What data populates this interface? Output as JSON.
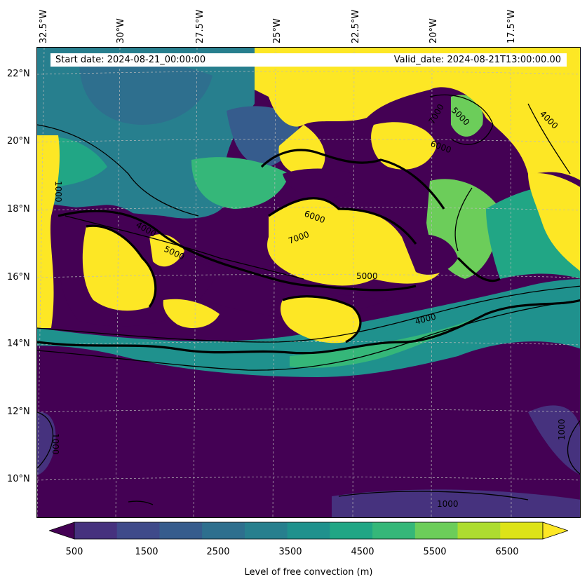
{
  "info": {
    "start_date": "Start date: 2024-08-21_00:00:00",
    "valid_date": "Valid_date: 2024-08-21T13:00:00.00"
  },
  "axes": {
    "lon_labels": [
      "32.5°W",
      "30°W",
      "27.5°W",
      "25°W",
      "22.5°W",
      "20°W",
      "17.5°W"
    ],
    "lat_labels": [
      "22°N",
      "20°N",
      "18°N",
      "16°N",
      "14°N",
      "12°N",
      "10°N"
    ]
  },
  "colorbar": {
    "label": "Level of free convection (m)",
    "tick_labels": [
      "500",
      "1500",
      "2500",
      "3500",
      "4500",
      "5500",
      "6500"
    ],
    "colors": [
      "#440154",
      "#46327e",
      "#3f4a8a",
      "#365c8d",
      "#2e6f8e",
      "#277f8e",
      "#1f918d",
      "#21a685",
      "#35b779",
      "#6ccd5a",
      "#addc30",
      "#dde318",
      "#fde725"
    ],
    "extend": "both"
  },
  "contour_labels": {
    "values": [
      "1000",
      "4000",
      "5000",
      "6000",
      "7000"
    ]
  },
  "map": {
    "field": "Level of free convection",
    "units": "m",
    "region": "Eastern tropical Atlantic / West Africa coast",
    "gridlines": true
  }
}
